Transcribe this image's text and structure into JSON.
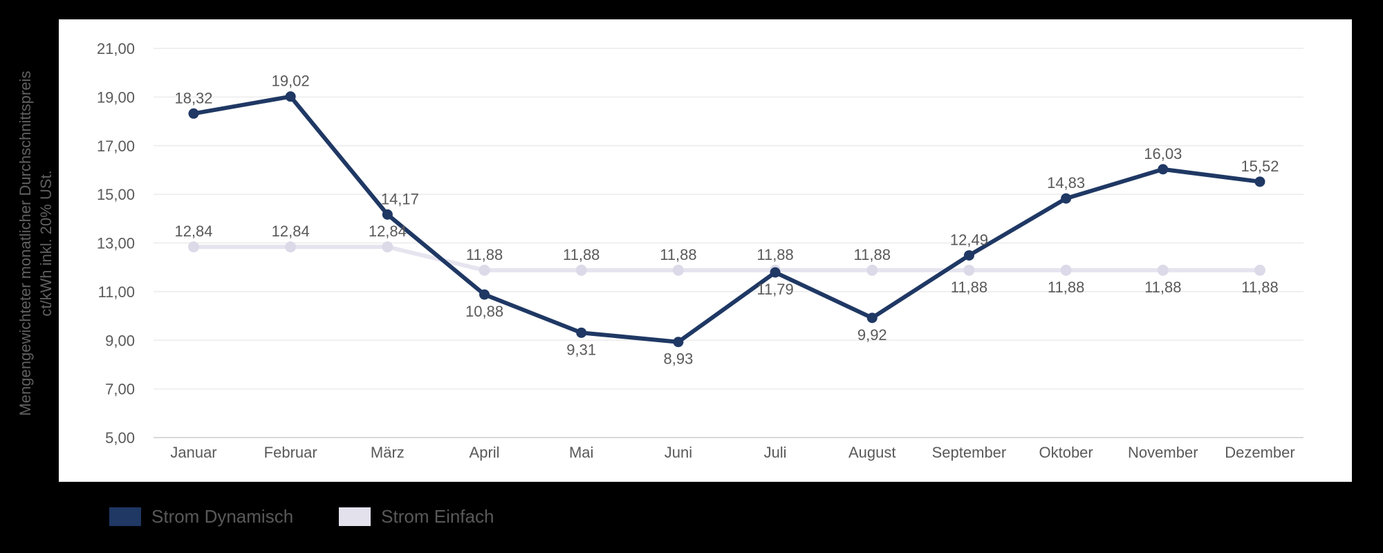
{
  "y_axis_title": {
    "line1": "Mengengewichteter monatlicher Durchschnittspreis",
    "line2": "ct/kWh inkl. 20% USt."
  },
  "legend": {
    "items": [
      {
        "label": "Strom Dynamisch",
        "color": "#1f3864"
      },
      {
        "label": "Strom Einfach",
        "color": "#e2e1ec"
      }
    ]
  },
  "chart_data": {
    "type": "line",
    "title": "",
    "xlabel": "",
    "ylabel": "Mengengewichteter monatlicher Durchschnittspreis ct/kWh inkl. 20% USt.",
    "categories": [
      "Januar",
      "Februar",
      "März",
      "April",
      "Mai",
      "Juni",
      "Juli",
      "August",
      "September",
      "Oktober",
      "November",
      "Dezember"
    ],
    "series": [
      {
        "name": "Strom Dynamisch",
        "color": "#1f3864",
        "marker_color": "#1f3864",
        "values": [
          18.32,
          19.02,
          14.17,
          10.88,
          9.31,
          8.93,
          11.79,
          9.92,
          12.49,
          14.83,
          16.03,
          15.52
        ],
        "labels": [
          "18,32",
          "19,02",
          "14,17",
          "10,88",
          "9,31",
          "8,93",
          "11,79",
          "9,92",
          "12,49",
          "14,83",
          "16,03",
          "15,52"
        ],
        "label_pos": [
          "above",
          "above",
          "above",
          "below",
          "below",
          "below",
          "below",
          "below",
          "above",
          "above",
          "above",
          "above"
        ],
        "label_dx": [
          0,
          0,
          18,
          0,
          0,
          0,
          0,
          0,
          0,
          0,
          0,
          0
        ]
      },
      {
        "name": "Strom Einfach",
        "color": "#e5e4ef",
        "marker_color": "#dcdae8",
        "values": [
          12.84,
          12.84,
          12.84,
          11.88,
          11.88,
          11.88,
          11.88,
          11.88,
          11.88,
          11.88,
          11.88,
          11.88
        ],
        "labels": [
          "12,84",
          "12,84",
          "12,84",
          "11,88",
          "11,88",
          "11,88",
          "11,88",
          "11,88",
          "11,88",
          "11,88",
          "11,88",
          "11,88"
        ],
        "label_pos": [
          "above",
          "above",
          "above",
          "above",
          "above",
          "above",
          "above",
          "above",
          "below",
          "below",
          "below",
          "below"
        ],
        "label_dx": [
          0,
          0,
          0,
          0,
          0,
          0,
          0,
          0,
          0,
          0,
          0,
          0
        ]
      }
    ],
    "yticks": [
      "21,00",
      "19,00",
      "17,00",
      "15,00",
      "13,00",
      "11,00",
      "9,00",
      "7,00",
      "5,00"
    ],
    "ytick_values": [
      21,
      19,
      17,
      15,
      13,
      11,
      9,
      7,
      5
    ],
    "ylim": [
      5,
      21
    ],
    "grid": true,
    "legend_position": "bottom-left",
    "label_color": "#595959",
    "tick_color": "#595959",
    "grid_color": "#efefef",
    "axis_line_color": "#d9d9d9"
  }
}
